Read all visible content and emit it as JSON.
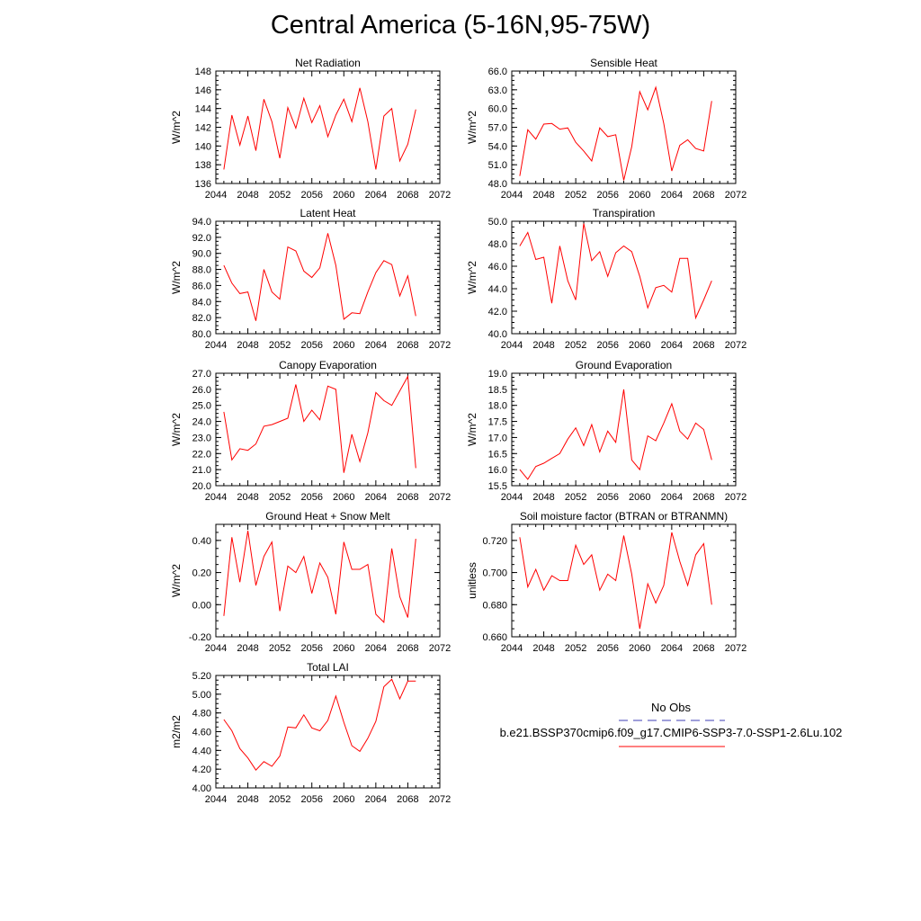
{
  "figure_title": "Central America (5-16N,95-75W)",
  "colors": {
    "model_line": "#ff0000",
    "obs_line": "#3c3cb4",
    "axis": "#000000"
  },
  "legend": {
    "obs_label": "No Obs",
    "model_label": "b.e21.BSSP370cmip6.f09_g17.CMIP6-SSP3-7.0-SSP1-2.6Lu.102"
  },
  "chart_data": [
    {
      "type": "line",
      "title": "Net Radiation",
      "ylabel": "W/m^2",
      "xlim": [
        2044,
        2072
      ],
      "xticks": [
        2044,
        2048,
        2052,
        2056,
        2060,
        2064,
        2068,
        2072
      ],
      "ylim": [
        136,
        148
      ],
      "yticks": [
        136,
        138,
        140,
        142,
        144,
        146,
        148
      ],
      "ytick_labels": [
        "136",
        "138",
        "140",
        "142",
        "144",
        "146",
        "148"
      ],
      "x": [
        2045,
        2046,
        2047,
        2048,
        2049,
        2050,
        2051,
        2052,
        2053,
        2054,
        2055,
        2056,
        2057,
        2058,
        2059,
        2060,
        2061,
        2062,
        2063,
        2064,
        2065,
        2066,
        2067,
        2068,
        2069
      ],
      "series": [
        {
          "values": [
            137.5,
            143.3,
            140.1,
            143.2,
            139.5,
            145.0,
            142.6,
            138.7,
            144.1,
            141.9,
            145.1,
            142.5,
            144.3,
            141.0,
            143.3,
            145.0,
            142.6,
            146.2,
            142.6,
            137.5,
            143.2,
            144.0,
            138.4,
            140.2,
            143.9
          ]
        }
      ]
    },
    {
      "type": "line",
      "title": "Sensible Heat",
      "ylabel": "W/m^2",
      "xlim": [
        2044,
        2072
      ],
      "xticks": [
        2044,
        2048,
        2052,
        2056,
        2060,
        2064,
        2068,
        2072
      ],
      "ylim": [
        48.0,
        66.0
      ],
      "yticks": [
        48,
        51,
        54,
        57,
        60,
        63,
        66
      ],
      "ytick_labels": [
        "48.0",
        "51.0",
        "54.0",
        "57.0",
        "60.0",
        "63.0",
        "66.0"
      ],
      "x": [
        2045,
        2046,
        2047,
        2048,
        2049,
        2050,
        2051,
        2052,
        2053,
        2054,
        2055,
        2056,
        2057,
        2058,
        2059,
        2060,
        2061,
        2062,
        2063,
        2064,
        2065,
        2066,
        2067,
        2068,
        2069
      ],
      "series": [
        {
          "values": [
            49.2,
            56.6,
            55.1,
            57.5,
            57.6,
            56.7,
            56.9,
            54.6,
            53.2,
            51.6,
            56.9,
            55.5,
            55.8,
            48.5,
            53.9,
            62.7,
            59.8,
            63.4,
            57.6,
            50.0,
            54.1,
            55.0,
            53.6,
            53.2,
            61.2
          ]
        }
      ]
    },
    {
      "type": "line",
      "title": "Latent Heat",
      "ylabel": "W/m^2",
      "xlim": [
        2044,
        2072
      ],
      "xticks": [
        2044,
        2048,
        2052,
        2056,
        2060,
        2064,
        2068,
        2072
      ],
      "ylim": [
        80.0,
        94.0
      ],
      "yticks": [
        80,
        82,
        84,
        86,
        88,
        90,
        92,
        94
      ],
      "ytick_labels": [
        "80.0",
        "82.0",
        "84.0",
        "86.0",
        "88.0",
        "90.0",
        "92.0",
        "94.0"
      ],
      "x": [
        2045,
        2046,
        2047,
        2048,
        2049,
        2050,
        2051,
        2052,
        2053,
        2054,
        2055,
        2056,
        2057,
        2058,
        2059,
        2060,
        2061,
        2062,
        2063,
        2064,
        2065,
        2066,
        2067,
        2068,
        2069
      ],
      "series": [
        {
          "values": [
            88.5,
            86.3,
            85.0,
            85.2,
            81.6,
            88.0,
            85.2,
            84.3,
            90.8,
            90.3,
            87.8,
            87.0,
            88.2,
            92.5,
            88.5,
            81.8,
            82.6,
            82.5,
            85.2,
            87.6,
            89.1,
            88.6,
            84.7,
            87.2,
            82.2
          ]
        }
      ]
    },
    {
      "type": "line",
      "title": "Transpiration",
      "ylabel": "W/m^2",
      "xlim": [
        2044,
        2072
      ],
      "xticks": [
        2044,
        2048,
        2052,
        2056,
        2060,
        2064,
        2068,
        2072
      ],
      "ylim": [
        40.0,
        50.0
      ],
      "yticks": [
        40,
        42,
        44,
        46,
        48,
        50
      ],
      "ytick_labels": [
        "40.0",
        "42.0",
        "44.0",
        "46.0",
        "48.0",
        "50.0"
      ],
      "x": [
        2045,
        2046,
        2047,
        2048,
        2049,
        2050,
        2051,
        2052,
        2053,
        2054,
        2055,
        2056,
        2057,
        2058,
        2059,
        2060,
        2061,
        2062,
        2063,
        2064,
        2065,
        2066,
        2067,
        2068,
        2069
      ],
      "series": [
        {
          "values": [
            47.8,
            49.0,
            46.6,
            46.8,
            42.7,
            47.8,
            44.7,
            43.0,
            49.8,
            46.5,
            47.3,
            45.1,
            47.2,
            47.8,
            47.3,
            45.1,
            42.3,
            44.1,
            44.3,
            43.7,
            46.7,
            46.7,
            41.4,
            43.0,
            44.7
          ]
        }
      ]
    },
    {
      "type": "line",
      "title": "Canopy Evaporation",
      "ylabel": "W/m^2",
      "xlim": [
        2044,
        2072
      ],
      "xticks": [
        2044,
        2048,
        2052,
        2056,
        2060,
        2064,
        2068,
        2072
      ],
      "ylim": [
        20.0,
        27.0
      ],
      "yticks": [
        20,
        21,
        22,
        23,
        24,
        25,
        26,
        27
      ],
      "ytick_labels": [
        "20.0",
        "21.0",
        "22.0",
        "23.0",
        "24.0",
        "25.0",
        "26.0",
        "27.0"
      ],
      "x": [
        2045,
        2046,
        2047,
        2048,
        2049,
        2050,
        2051,
        2052,
        2053,
        2054,
        2055,
        2056,
        2057,
        2058,
        2059,
        2060,
        2061,
        2062,
        2063,
        2064,
        2065,
        2066,
        2067,
        2068,
        2069
      ],
      "series": [
        {
          "values": [
            24.6,
            21.6,
            22.3,
            22.2,
            22.6,
            23.7,
            23.8,
            24.0,
            24.2,
            26.3,
            24.0,
            24.7,
            24.1,
            26.2,
            26.0,
            20.8,
            23.2,
            21.5,
            23.3,
            25.8,
            25.3,
            25.0,
            25.9,
            26.8,
            21.1
          ]
        }
      ]
    },
    {
      "type": "line",
      "title": "Ground Evaporation",
      "ylabel": "W/m^2",
      "xlim": [
        2044,
        2072
      ],
      "xticks": [
        2044,
        2048,
        2052,
        2056,
        2060,
        2064,
        2068,
        2072
      ],
      "ylim": [
        15.5,
        19.0
      ],
      "yticks": [
        15.5,
        16.0,
        16.5,
        17.0,
        17.5,
        18.0,
        18.5,
        19.0
      ],
      "ytick_labels": [
        "15.5",
        "16.0",
        "16.5",
        "17.0",
        "17.5",
        "18.0",
        "18.5",
        "19.0"
      ],
      "x": [
        2045,
        2046,
        2047,
        2048,
        2049,
        2050,
        2051,
        2052,
        2053,
        2054,
        2055,
        2056,
        2057,
        2058,
        2059,
        2060,
        2061,
        2062,
        2063,
        2064,
        2065,
        2066,
        2067,
        2068,
        2069
      ],
      "series": [
        {
          "values": [
            16.0,
            15.7,
            16.1,
            16.2,
            16.35,
            16.5,
            16.95,
            17.3,
            16.75,
            17.4,
            16.55,
            17.2,
            16.85,
            18.5,
            16.3,
            16.0,
            17.05,
            16.9,
            17.45,
            18.05,
            17.2,
            16.95,
            17.45,
            17.25,
            16.3
          ]
        }
      ]
    },
    {
      "type": "line",
      "title": "Ground Heat + Snow Melt",
      "ylabel": "W/m^2",
      "xlim": [
        2044,
        2072
      ],
      "xticks": [
        2044,
        2048,
        2052,
        2056,
        2060,
        2064,
        2068,
        2072
      ],
      "ylim": [
        -0.2,
        0.5
      ],
      "yticks": [
        -0.2,
        0.0,
        0.2,
        0.4
      ],
      "ytick_labels": [
        "-0.20",
        "0.00",
        "0.20",
        "0.40"
      ],
      "x": [
        2045,
        2046,
        2047,
        2048,
        2049,
        2050,
        2051,
        2052,
        2053,
        2054,
        2055,
        2056,
        2057,
        2058,
        2059,
        2060,
        2061,
        2062,
        2063,
        2064,
        2065,
        2066,
        2067,
        2068,
        2069
      ],
      "series": [
        {
          "values": [
            -0.07,
            0.42,
            0.14,
            0.46,
            0.12,
            0.3,
            0.39,
            -0.04,
            0.24,
            0.2,
            0.3,
            0.07,
            0.26,
            0.17,
            -0.06,
            0.39,
            0.22,
            0.22,
            0.25,
            -0.06,
            -0.11,
            0.35,
            0.05,
            -0.08,
            0.41
          ]
        }
      ]
    },
    {
      "type": "line",
      "title": "Soil moisture factor (BTRAN or BTRANMN)",
      "ylabel": "unitless",
      "xlim": [
        2044,
        2072
      ],
      "xticks": [
        2044,
        2048,
        2052,
        2056,
        2060,
        2064,
        2068,
        2072
      ],
      "ylim": [
        0.66,
        0.73
      ],
      "yticks": [
        0.66,
        0.68,
        0.7,
        0.72
      ],
      "ytick_labels": [
        "0.660",
        "0.680",
        "0.700",
        "0.720"
      ],
      "x": [
        2045,
        2046,
        2047,
        2048,
        2049,
        2050,
        2051,
        2052,
        2053,
        2054,
        2055,
        2056,
        2057,
        2058,
        2059,
        2060,
        2061,
        2062,
        2063,
        2064,
        2065,
        2066,
        2067,
        2068,
        2069
      ],
      "series": [
        {
          "values": [
            0.722,
            0.691,
            0.702,
            0.689,
            0.698,
            0.695,
            0.695,
            0.717,
            0.705,
            0.711,
            0.689,
            0.699,
            0.695,
            0.723,
            0.699,
            0.665,
            0.693,
            0.681,
            0.692,
            0.725,
            0.707,
            0.692,
            0.711,
            0.718,
            0.68
          ]
        }
      ]
    },
    {
      "type": "line",
      "title": "Total LAI",
      "ylabel": "m2/m2",
      "xlim": [
        2044,
        2072
      ],
      "xticks": [
        2044,
        2048,
        2052,
        2056,
        2060,
        2064,
        2068,
        2072
      ],
      "ylim": [
        4.0,
        5.2
      ],
      "yticks": [
        4.0,
        4.2,
        4.4,
        4.6,
        4.8,
        5.0,
        5.2
      ],
      "ytick_labels": [
        "4.00",
        "4.20",
        "4.40",
        "4.60",
        "4.80",
        "5.00",
        "5.20"
      ],
      "x": [
        2045,
        2046,
        2047,
        2048,
        2049,
        2050,
        2051,
        2052,
        2053,
        2054,
        2055,
        2056,
        2057,
        2058,
        2059,
        2060,
        2061,
        2062,
        2063,
        2064,
        2065,
        2066,
        2067,
        2068,
        2069
      ],
      "series": [
        {
          "values": [
            4.73,
            4.61,
            4.42,
            4.32,
            4.19,
            4.28,
            4.23,
            4.34,
            4.65,
            4.64,
            4.78,
            4.64,
            4.61,
            4.72,
            4.98,
            4.7,
            4.45,
            4.39,
            4.53,
            4.71,
            5.08,
            5.16,
            4.95,
            5.14,
            5.14
          ]
        }
      ]
    }
  ]
}
